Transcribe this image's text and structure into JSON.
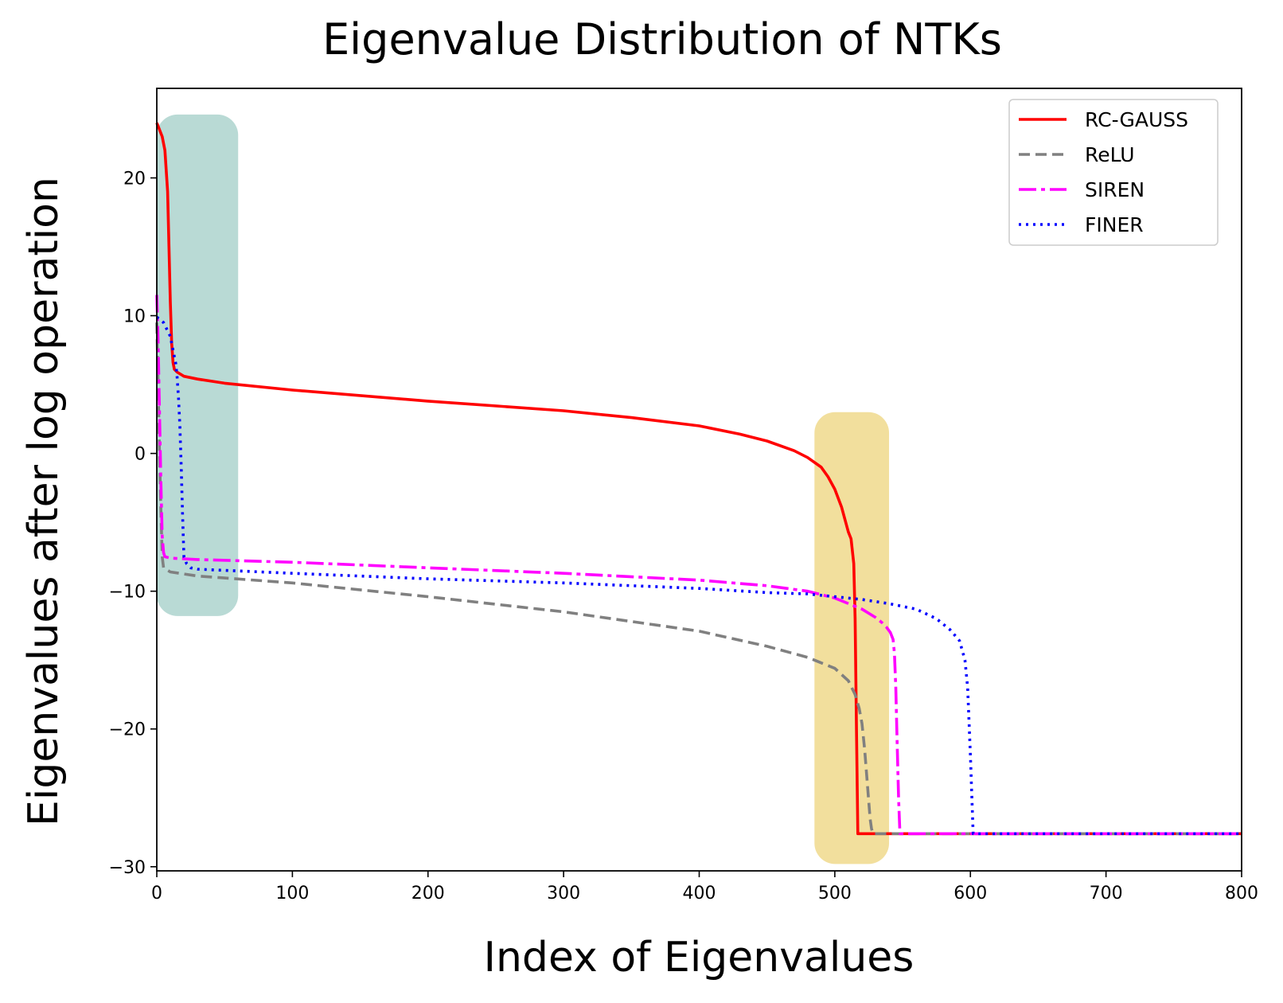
{
  "chart_data": {
    "type": "line",
    "title": "Eigenvalue Distribution of NTKs",
    "xlabel": "Index of Eigenvalues",
    "ylabel": "Eigenvalues after log operation",
    "xlim": [
      0,
      800
    ],
    "ylim": [
      -30.3,
      26.5
    ],
    "xticks": [
      0,
      100,
      200,
      300,
      400,
      500,
      600,
      700,
      800
    ],
    "xtick_labels": [
      "0",
      "100",
      "200",
      "300",
      "400",
      "500",
      "600",
      "700",
      "800"
    ],
    "yticks": [
      20,
      10,
      0,
      -10,
      -20,
      -30
    ],
    "ytick_labels": [
      "20",
      "10",
      "0",
      "−10",
      "−20",
      "−30"
    ],
    "grid": false,
    "legend_position": "top-right",
    "highlight_regions": [
      {
        "x": [
          0,
          60
        ],
        "y": [
          -11.8,
          24.6
        ],
        "color": "#b9dad5"
      },
      {
        "x": [
          485,
          540
        ],
        "y": [
          -29.8,
          3.0
        ],
        "color": "#f2df9d"
      }
    ],
    "series": [
      {
        "name": "RC-GAUSS",
        "color": "#ff0000",
        "dash": "",
        "x": [
          0,
          2,
          4,
          6,
          8,
          9,
          10,
          11,
          12,
          13,
          15,
          20,
          30,
          50,
          100,
          200,
          300,
          350,
          400,
          430,
          450,
          470,
          480,
          490,
          495,
          500,
          505,
          510,
          512,
          514,
          515,
          516,
          517,
          520,
          800
        ],
        "y": [
          24.0,
          23.5,
          23.0,
          22.0,
          19.0,
          15.0,
          11.0,
          8.0,
          6.6,
          6.1,
          5.9,
          5.6,
          5.4,
          5.1,
          4.6,
          3.8,
          3.1,
          2.6,
          2.0,
          1.4,
          0.9,
          0.2,
          -0.3,
          -1.0,
          -1.7,
          -2.6,
          -3.9,
          -5.7,
          -6.2,
          -8.0,
          -12.0,
          -20.0,
          -27.6,
          -27.6,
          -27.6
        ]
      },
      {
        "name": "ReLU",
        "color": "#808080",
        "dash": "14,7",
        "x": [
          0,
          1,
          2,
          3,
          4,
          5,
          10,
          30,
          100,
          200,
          300,
          400,
          450,
          480,
          500,
          510,
          515,
          518,
          520,
          522,
          524,
          526,
          527,
          528,
          800
        ],
        "y": [
          9.5,
          5.0,
          0.0,
          -4.0,
          -7.5,
          -8.3,
          -8.6,
          -8.9,
          -9.4,
          -10.4,
          -11.5,
          -12.9,
          -14.0,
          -14.8,
          -15.6,
          -16.5,
          -17.5,
          -18.5,
          -19.6,
          -21.5,
          -24.0,
          -26.5,
          -27.2,
          -27.6,
          -27.6
        ]
      },
      {
        "name": "SIREN",
        "color": "#ff00ff",
        "dash": "22,6,5,6",
        "x": [
          0,
          1,
          2,
          3,
          4,
          5,
          6,
          10,
          30,
          100,
          200,
          300,
          400,
          450,
          480,
          500,
          520,
          530,
          535,
          538,
          541,
          543,
          544,
          545,
          546,
          547,
          548,
          800
        ],
        "y": [
          11.5,
          8.0,
          3.0,
          -2.0,
          -6.0,
          -7.2,
          -7.5,
          -7.6,
          -7.7,
          -7.9,
          -8.3,
          -8.7,
          -9.2,
          -9.6,
          -10.0,
          -10.5,
          -11.3,
          -11.9,
          -12.3,
          -12.6,
          -13.0,
          -13.5,
          -14.5,
          -17.0,
          -21.0,
          -25.0,
          -27.6,
          -27.6
        ]
      },
      {
        "name": "FINER",
        "color": "#0000ff",
        "dash": "3,6",
        "x": [
          0,
          5,
          10,
          12,
          14,
          15,
          16,
          17,
          18,
          19,
          20,
          22,
          25,
          30,
          100,
          200,
          300,
          400,
          450,
          480,
          500,
          520,
          540,
          560,
          575,
          585,
          592,
          596,
          598,
          600,
          602,
          800
        ],
        "y": [
          9.9,
          9.5,
          8.5,
          7.5,
          6.5,
          5.5,
          4.0,
          2.0,
          -1.0,
          -4.5,
          -7.5,
          -8.0,
          -8.3,
          -8.4,
          -8.7,
          -9.1,
          -9.4,
          -9.8,
          -10.1,
          -10.2,
          -10.4,
          -10.6,
          -10.9,
          -11.3,
          -12.0,
          -12.8,
          -13.6,
          -15.0,
          -17.0,
          -22.0,
          -27.6,
          -27.6
        ]
      }
    ]
  }
}
